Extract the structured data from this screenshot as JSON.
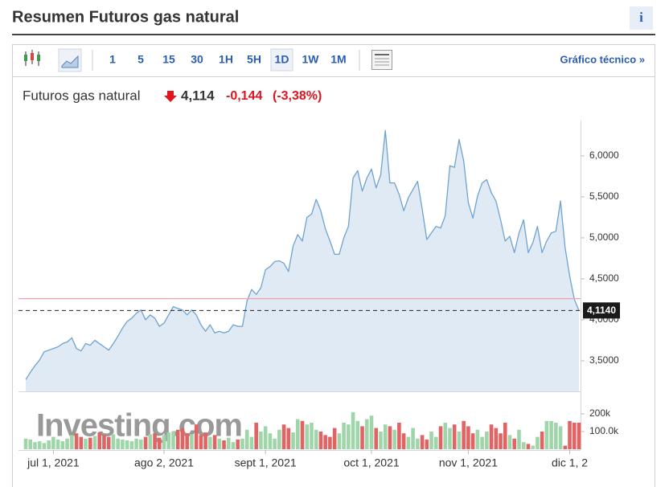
{
  "header": {
    "title": "Resumen Futuros gas natural",
    "info": "i"
  },
  "toolbar": {
    "intervals": [
      "1",
      "5",
      "15",
      "30",
      "1H",
      "5H",
      "1D",
      "1W",
      "1M"
    ],
    "link": "Gráfico técnico »"
  },
  "quote": {
    "name": "Futuros gas natural",
    "last": "4,114",
    "change": "-0,144",
    "change_pct": "(-3,38%)"
  },
  "chart_data": {
    "type": "line",
    "categories": [
      null,
      null,
      null,
      null,
      null,
      null,
      "jul 1, 2021",
      null,
      null,
      null,
      null,
      null,
      null,
      null,
      null,
      null,
      null,
      null,
      null,
      null,
      null,
      null,
      null,
      null,
      null,
      null,
      null,
      null,
      null,
      null,
      "ago 2, 2021",
      null,
      null,
      null,
      null,
      null,
      null,
      null,
      null,
      null,
      null,
      null,
      null,
      null,
      null,
      null,
      null,
      null,
      null,
      null,
      null,
      null,
      "sept 1, 2021",
      null,
      null,
      null,
      null,
      null,
      null,
      null,
      null,
      null,
      null,
      null,
      null,
      null,
      null,
      null,
      null,
      null,
      null,
      null,
      null,
      null,
      null,
      "oct 1, 2021",
      null,
      null,
      null,
      null,
      null,
      null,
      null,
      null,
      null,
      null,
      null,
      null,
      null,
      null,
      null,
      null,
      null,
      null,
      null,
      null,
      "nov 1, 2021",
      null,
      null,
      null,
      null,
      null,
      null,
      null,
      null,
      null,
      null,
      null,
      null,
      null,
      null,
      null,
      null,
      null,
      null,
      null,
      null,
      null,
      "dic 1, 2",
      null,
      null
    ],
    "values": [
      3.27,
      3.36,
      3.44,
      3.51,
      3.61,
      3.63,
      3.65,
      3.67,
      3.71,
      3.73,
      3.78,
      3.65,
      3.62,
      3.71,
      3.69,
      3.75,
      3.71,
      3.67,
      3.63,
      3.71,
      3.8,
      3.9,
      3.98,
      4.02,
      4.08,
      4.12,
      4.0,
      4.06,
      4.02,
      3.92,
      3.96,
      4.06,
      4.16,
      4.14,
      4.12,
      4.06,
      4.12,
      4.06,
      3.94,
      3.86,
      3.94,
      3.84,
      3.86,
      3.84,
      3.86,
      3.94,
      3.92,
      3.92,
      4.23,
      4.37,
      4.31,
      4.39,
      4.61,
      4.65,
      4.71,
      4.72,
      4.69,
      4.59,
      4.9,
      5.04,
      4.96,
      5.25,
      5.29,
      5.47,
      5.33,
      5.11,
      4.96,
      4.8,
      4.8,
      5.0,
      5.14,
      5.73,
      5.82,
      5.57,
      5.73,
      5.84,
      5.61,
      5.77,
      6.31,
      5.67,
      5.67,
      5.53,
      5.33,
      5.49,
      5.59,
      5.69,
      5.35,
      4.98,
      5.06,
      5.14,
      5.12,
      5.27,
      5.88,
      5.86,
      6.2,
      5.94,
      5.43,
      5.24,
      5.51,
      5.67,
      5.71,
      5.55,
      5.45,
      5.22,
      4.96,
      5.02,
      4.82,
      5.06,
      5.22,
      4.82,
      4.94,
      5.14,
      4.82,
      4.96,
      5.06,
      5.08,
      5.45,
      4.88,
      4.53,
      4.25,
      4.114
    ],
    "color": "#6fa3cf",
    "area_color": "#dfeaf4",
    "ylim": [
      3.127,
      6.431
    ],
    "yticks": [
      {
        "value": 3.5,
        "label": "3,5000"
      },
      {
        "value": 4,
        "label": "4,0000"
      },
      {
        "value": 4.5,
        "label": "4,5000"
      },
      {
        "value": 5,
        "label": "5,0000"
      },
      {
        "value": 5.5,
        "label": "5,5000"
      },
      {
        "value": 6,
        "label": "6,0000"
      }
    ],
    "last_price": {
      "value": 4.114,
      "label": "4,1140"
    },
    "previous_close": 4.258,
    "previous_close_color": "#f2a0a8",
    "grid": false,
    "watermark": "Investing.com",
    "volume": {
      "values": [
        60000,
        55000,
        40000,
        45000,
        35000,
        50000,
        70000,
        55000,
        45000,
        60000,
        80000,
        90000,
        70000,
        60000,
        65000,
        75000,
        95000,
        80000,
        70000,
        85000,
        60000,
        55000,
        50000,
        45000,
        60000,
        55000,
        70000,
        85000,
        90000,
        65000,
        80000,
        95000,
        100000,
        110000,
        120000,
        90000,
        85000,
        140000,
        80000,
        95000,
        70000,
        80000,
        60000,
        50000,
        65000,
        40000,
        55000,
        60000,
        110000,
        70000,
        150000,
        100000,
        130000,
        90000,
        60000,
        110000,
        140000,
        120000,
        95000,
        170000,
        160000,
        140000,
        150000,
        110000,
        100000,
        80000,
        70000,
        120000,
        90000,
        150000,
        140000,
        210000,
        160000,
        130000,
        170000,
        190000,
        120000,
        100000,
        140000,
        130000,
        110000,
        150000,
        90000,
        70000,
        120000,
        60000,
        80000,
        55000,
        100000,
        70000,
        130000,
        150000,
        120000,
        140000,
        100000,
        160000,
        130000,
        90000,
        110000,
        70000,
        100000,
        140000,
        120000,
        90000,
        150000,
        80000,
        60000,
        110000,
        40000,
        30000,
        20000,
        70000,
        100000,
        160000,
        160000,
        150000,
        130000,
        20000,
        160000,
        150000,
        150000
      ],
      "ylim": [
        0,
        300000
      ],
      "yticks": [
        {
          "value": 100000,
          "label": "100.0k"
        },
        {
          "value": 200000,
          "label": "200k"
        }
      ],
      "up_color": "#9fd6a9",
      "down_color": "#e06464"
    }
  }
}
